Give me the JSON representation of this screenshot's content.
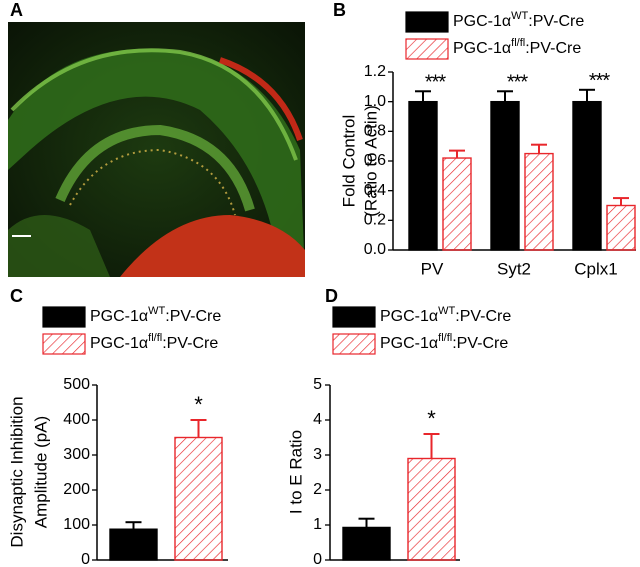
{
  "image_panel": {
    "panel_label": "A"
  },
  "chart_data": [
    {
      "type": "bar",
      "panel_label": "B",
      "y_label": [
        "Fold Control",
        "(Ratio to Actin)"
      ],
      "categories": [
        "PV",
        "Syt2",
        "Cplx1"
      ],
      "series": [
        {
          "name": [
            "PGC-1α",
            "WT",
            ":PV-Cre"
          ],
          "color": "#000000",
          "hatch": false,
          "values": [
            1.0,
            1.0,
            1.0
          ],
          "errors": [
            0.07,
            0.07,
            0.08
          ]
        },
        {
          "name": [
            "PGC-1α",
            "fl/fl",
            ":PV-Cre"
          ],
          "color": "#e8262b",
          "hatch": true,
          "values": [
            0.62,
            0.65,
            0.3
          ],
          "errors": [
            0.05,
            0.06,
            0.05
          ]
        }
      ],
      "annotations": [
        "***",
        "***",
        "***"
      ],
      "ylim": [
        0,
        1.2
      ],
      "yticks": [
        {
          "value": 0,
          "label": "0.0"
        },
        0.2,
        0.4,
        0.6,
        0.8,
        {
          "value": 1,
          "label": "1.0"
        },
        1.2
      ]
    },
    {
      "type": "bar",
      "panel_label": "C",
      "y_label": [
        "Disynaptic Inhibition",
        "Amplitude (pA)"
      ],
      "categories": [
        null
      ],
      "series": [
        {
          "name": [
            "PGC-1α",
            "WT",
            ":PV-Cre"
          ],
          "color": "#000000",
          "hatch": false,
          "values": [
            88
          ],
          "errors": [
            20
          ]
        },
        {
          "name": [
            "PGC-1α",
            "fl/fl",
            ":PV-Cre"
          ],
          "color": "#e8262b",
          "hatch": true,
          "values": [
            350
          ],
          "errors": [
            50
          ],
          "annotation": "*"
        }
      ],
      "ylim": [
        0,
        500
      ],
      "yticks": [
        0,
        100,
        200,
        300,
        400,
        500
      ]
    },
    {
      "type": "bar",
      "panel_label": "D",
      "y_label": [
        "I to E Ratio"
      ],
      "categories": [
        null
      ],
      "series": [
        {
          "name": [
            "PGC-1α",
            "WT",
            ":PV-Cre"
          ],
          "color": "#000000",
          "hatch": false,
          "values": [
            0.93
          ],
          "errors": [
            0.25
          ]
        },
        {
          "name": [
            "PGC-1α",
            "fl/fl",
            ":PV-Cre"
          ],
          "color": "#e8262b",
          "hatch": true,
          "values": [
            2.9
          ],
          "errors": [
            0.7
          ],
          "annotation": "*"
        }
      ],
      "ylim": [
        0,
        5
      ],
      "yticks": [
        0,
        1,
        2,
        3,
        4,
        5
      ]
    }
  ]
}
